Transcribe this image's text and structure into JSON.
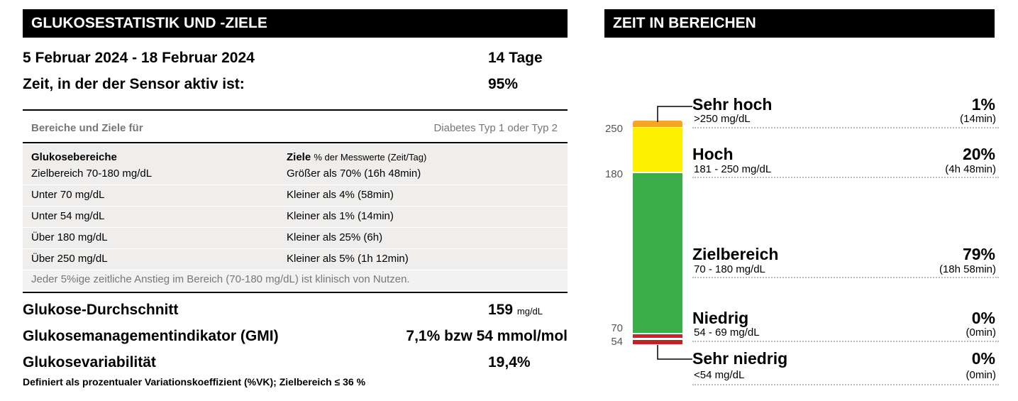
{
  "left_panel": {
    "title": "GLUKOSESTATISTIK UND -ZIELE",
    "date_range": "5 Februar 2024 - 18 Februar 2024",
    "days": "14 Tage",
    "sensor_label": "Zeit, in der der Sensor aktiv ist:",
    "sensor_value": "95%",
    "ranges_header_left": "Bereiche und Ziele für",
    "ranges_header_right": "Diabetes Typ 1 oder Typ 2",
    "table": {
      "col1_header": "Glukosebereiche",
      "col2_header": "Ziele",
      "col2_sub": "% der Messwerte (Zeit/Tag)",
      "rows": [
        {
          "range": "Zielbereich 70-180 mg/dL",
          "target": "Größer als 70% (16h 48min)"
        },
        {
          "range": "Unter 70 mg/dL",
          "target": "Kleiner als 4% (58min)"
        },
        {
          "range": "Unter 54 mg/dL",
          "target": "Kleiner als 1% (14min)"
        },
        {
          "range": "Über 180 mg/dL",
          "target": "Kleiner als 25% (6h)"
        },
        {
          "range": "Über 250 mg/dL",
          "target": "Kleiner als 5% (1h 12min)"
        }
      ],
      "note": "Jeder 5%ige zeitliche Anstieg im Bereich (70-180 mg/dL) ist klinisch von Nutzen."
    },
    "avg_label": "Glukose-Durchschnitt",
    "avg_value": "159",
    "avg_unit": "mg/dL",
    "gmi_label": "Glukosemanagementindikator (GMI)",
    "gmi_value": "7,1% bzw 54 mmol/mol",
    "var_label": "Glukosevariabilität",
    "var_value": "19,4%",
    "footnote": "Definiert als prozentualer Variationskoeffizient (%VK); Zielbereich ≤ 36 %"
  },
  "right_panel": {
    "title": "ZEIT IN BEREICHEN",
    "ticks": [
      "250",
      "180",
      "70",
      "54"
    ],
    "segments": [
      {
        "name": "Sehr hoch",
        "range": ">250 mg/dL",
        "percent": "1%",
        "duration": "(14min)",
        "value": 1,
        "color": "#f5a623"
      },
      {
        "name": "Hoch",
        "range": "181 - 250 mg/dL",
        "percent": "20%",
        "duration": "(4h 48min)",
        "value": 20,
        "color": "#fff200"
      },
      {
        "name": "Zielbereich",
        "range": "70 - 180 mg/dL",
        "percent": "79%",
        "duration": "(18h 58min)",
        "value": 79,
        "color": "#3cae49"
      },
      {
        "name": "Niedrig",
        "range": "54 - 69 mg/dL",
        "percent": "0%",
        "duration": "(0min)",
        "value": 0,
        "color": "#d0232a"
      },
      {
        "name": "Sehr niedrig",
        "range": "<54 mg/dL",
        "percent": "0%",
        "duration": "(0min)",
        "value": 0,
        "color": "#9e1b20"
      }
    ]
  }
}
